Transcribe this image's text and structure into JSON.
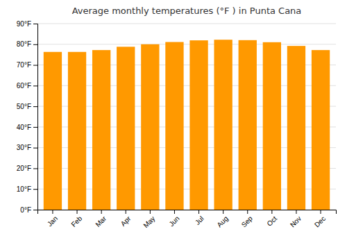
{
  "chart_data": {
    "type": "bar",
    "title": "Average monthly temperatures (°F ) in Punta Cana",
    "categories": [
      "Jan",
      "Feb",
      "Mar",
      "Apr",
      "May",
      "Jun",
      "Jul",
      "Aug",
      "Sep",
      "Oct",
      "Nov",
      "Dec"
    ],
    "values": [
      76.3,
      76.3,
      77.2,
      78.8,
      80.0,
      81.1,
      81.9,
      82.2,
      82.0,
      81.0,
      79.2,
      77.2
    ],
    "color": "#FF9900",
    "ylim": [
      0,
      90
    ],
    "yticks": [
      {
        "value": 0,
        "label": "0°F"
      },
      {
        "value": 10,
        "label": "10°F"
      },
      {
        "value": 20,
        "label": "20°F"
      },
      {
        "value": 30,
        "label": "30°F"
      },
      {
        "value": 40,
        "label": "40°F"
      },
      {
        "value": 50,
        "label": "50°F"
      },
      {
        "value": 60,
        "label": "60°F"
      },
      {
        "value": 70,
        "label": "70°F"
      },
      {
        "value": 80,
        "label": "80°F"
      },
      {
        "value": 90,
        "label": "90°F"
      }
    ],
    "grid": true
  }
}
